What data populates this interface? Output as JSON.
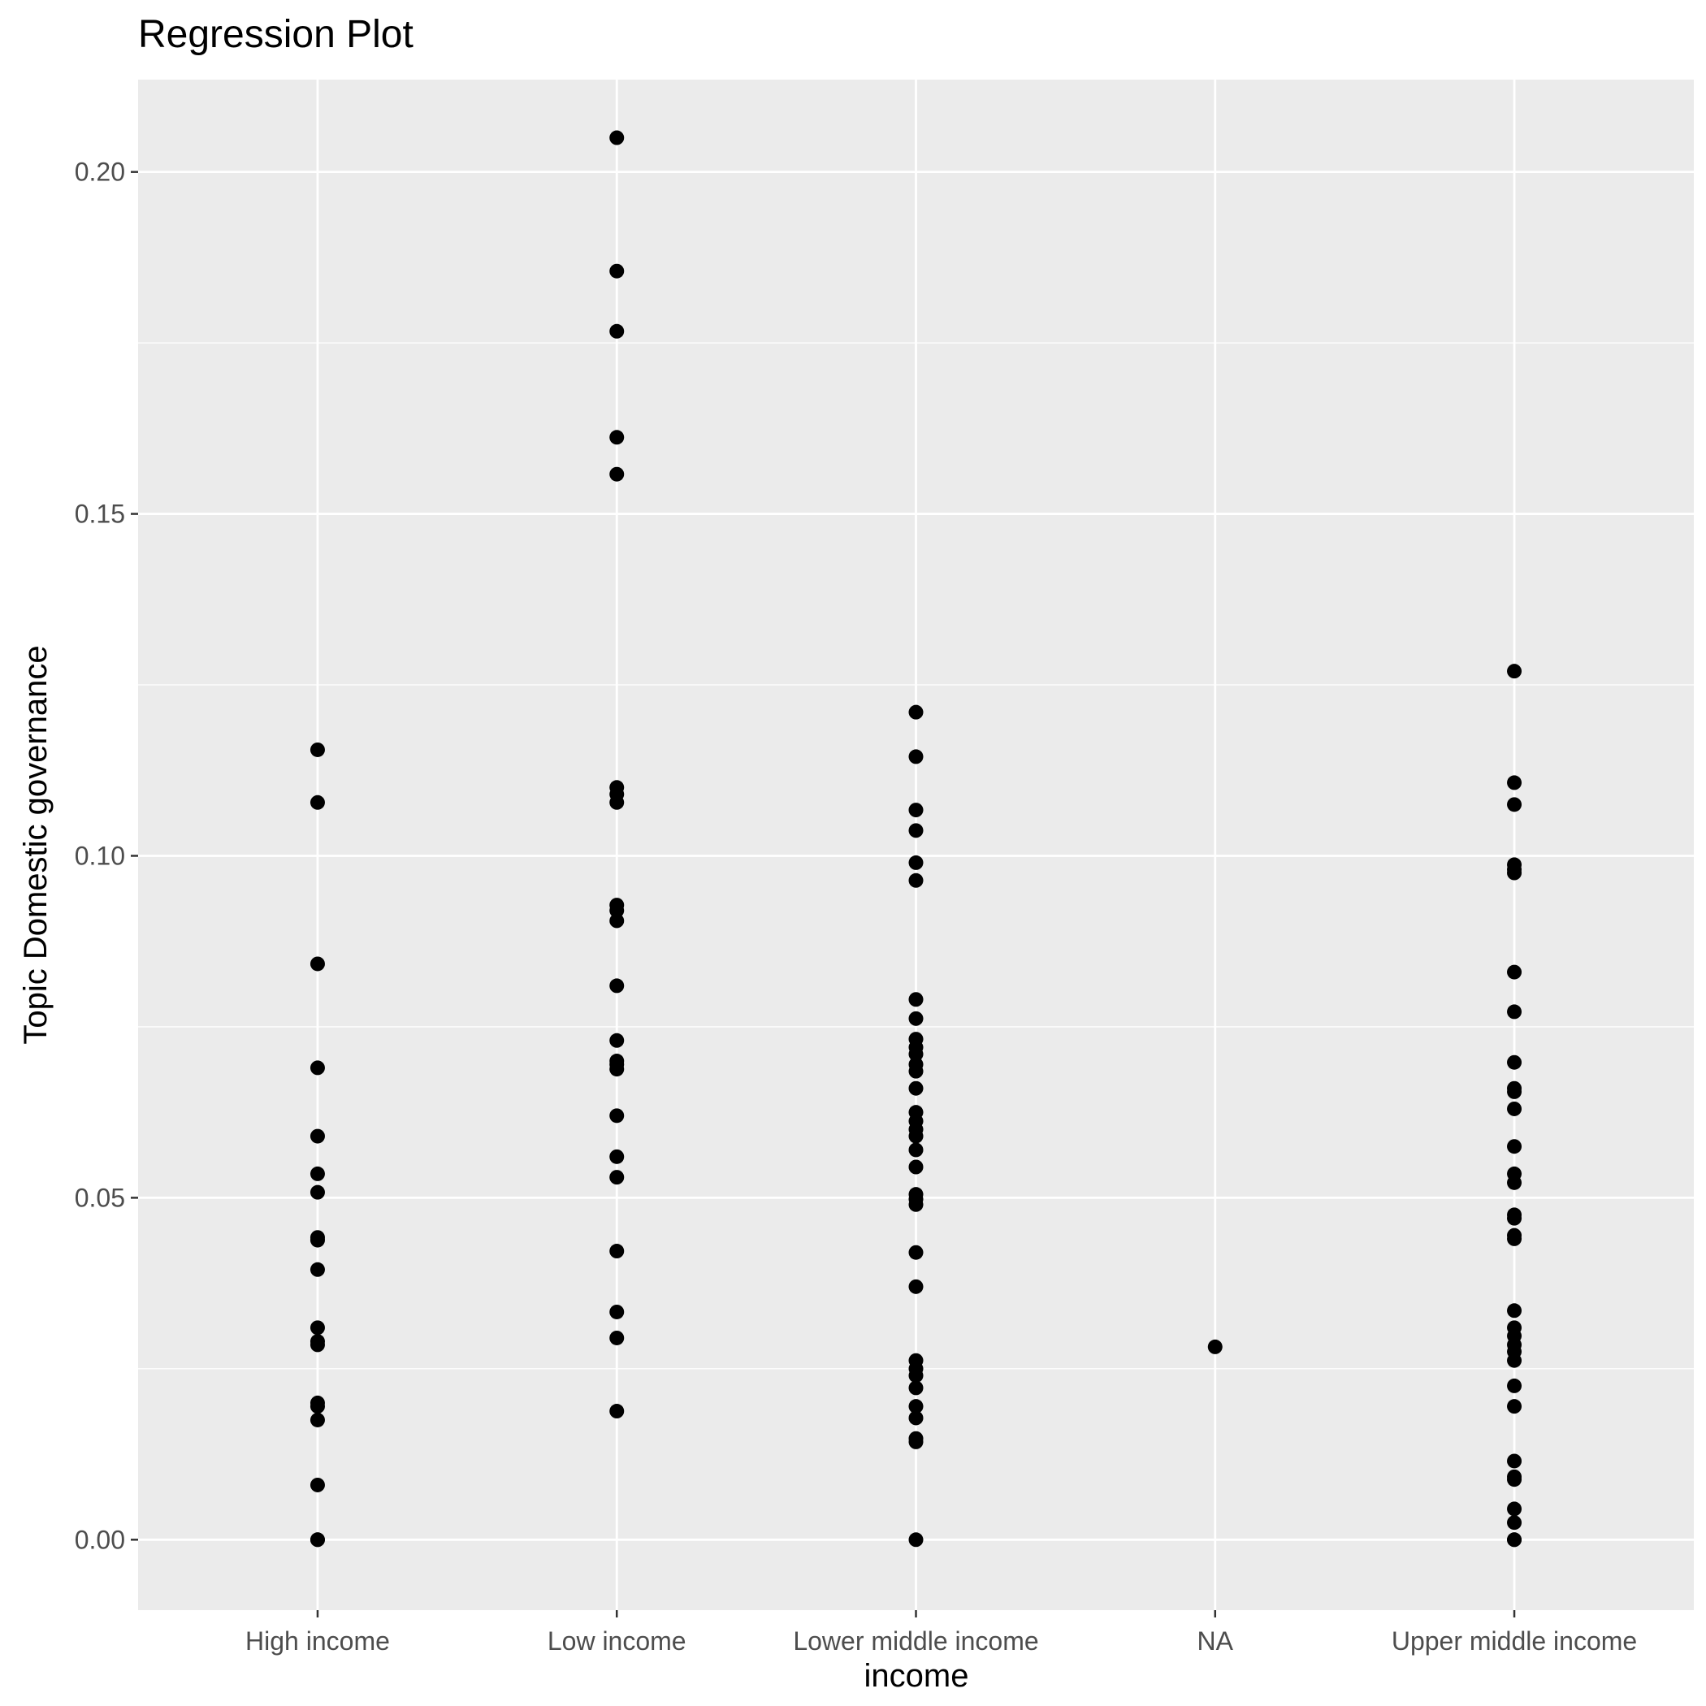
{
  "chart_data": {
    "type": "scatter",
    "title": "Regression Plot",
    "xlabel": "income",
    "ylabel": "Topic Domestic governance",
    "categories": [
      "High income",
      "Low income",
      "Lower middle income",
      "NA",
      "Upper middle income"
    ],
    "ylim": [
      -0.0103,
      0.2135
    ],
    "yticks": [
      {
        "value": 0.0,
        "label": "0.00"
      },
      {
        "value": 0.05,
        "label": "0.05"
      },
      {
        "value": 0.1,
        "label": "0.10"
      },
      {
        "value": 0.15,
        "label": "0.15"
      },
      {
        "value": 0.2,
        "label": "0.20"
      }
    ],
    "grid": true,
    "panel_background": "#ebebeb",
    "gridline_color": "#ffffff",
    "point_color": "#000000",
    "series": [
      {
        "category": "High income",
        "values": [
          0.1155,
          0.1078,
          0.0842,
          0.069,
          0.059,
          0.0535,
          0.0508,
          0.0442,
          0.0438,
          0.0395,
          0.031,
          0.029,
          0.0285,
          0.02,
          0.0195,
          0.0175,
          0.008,
          0.0,
          0.0
        ]
      },
      {
        "category": "Low income",
        "values": [
          0.205,
          0.1855,
          0.1767,
          0.1612,
          0.1558,
          0.11,
          0.109,
          0.1078,
          0.0928,
          0.092,
          0.0905,
          0.081,
          0.073,
          0.07,
          0.0695,
          0.0688,
          0.062,
          0.056,
          0.053,
          0.0422,
          0.0333,
          0.0295,
          0.0188
        ]
      },
      {
        "category": "Lower middle income",
        "values": [
          0.121,
          0.1145,
          0.1067,
          0.1037,
          0.099,
          0.0964,
          0.079,
          0.0762,
          0.0732,
          0.072,
          0.071,
          0.0695,
          0.0685,
          0.066,
          0.0625,
          0.0612,
          0.06,
          0.059,
          0.057,
          0.0545,
          0.0505,
          0.0498,
          0.049,
          0.042,
          0.037,
          0.0262,
          0.025,
          0.024,
          0.0222,
          0.0195,
          0.0178,
          0.0148,
          0.0143,
          0.0
        ]
      },
      {
        "category": "NA",
        "values": [
          0.0282
        ]
      },
      {
        "category": "Upper middle income",
        "values": [
          0.127,
          0.1107,
          0.1075,
          0.0987,
          0.098,
          0.0975,
          0.083,
          0.0772,
          0.0698,
          0.066,
          0.0655,
          0.063,
          0.0575,
          0.0535,
          0.0522,
          0.0475,
          0.047,
          0.0445,
          0.044,
          0.0335,
          0.031,
          0.0298,
          0.0285,
          0.0275,
          0.0262,
          0.0225,
          0.0195,
          0.0115,
          0.0092,
          0.0088,
          0.0045,
          0.0025,
          0.0,
          0.0
        ]
      }
    ]
  }
}
